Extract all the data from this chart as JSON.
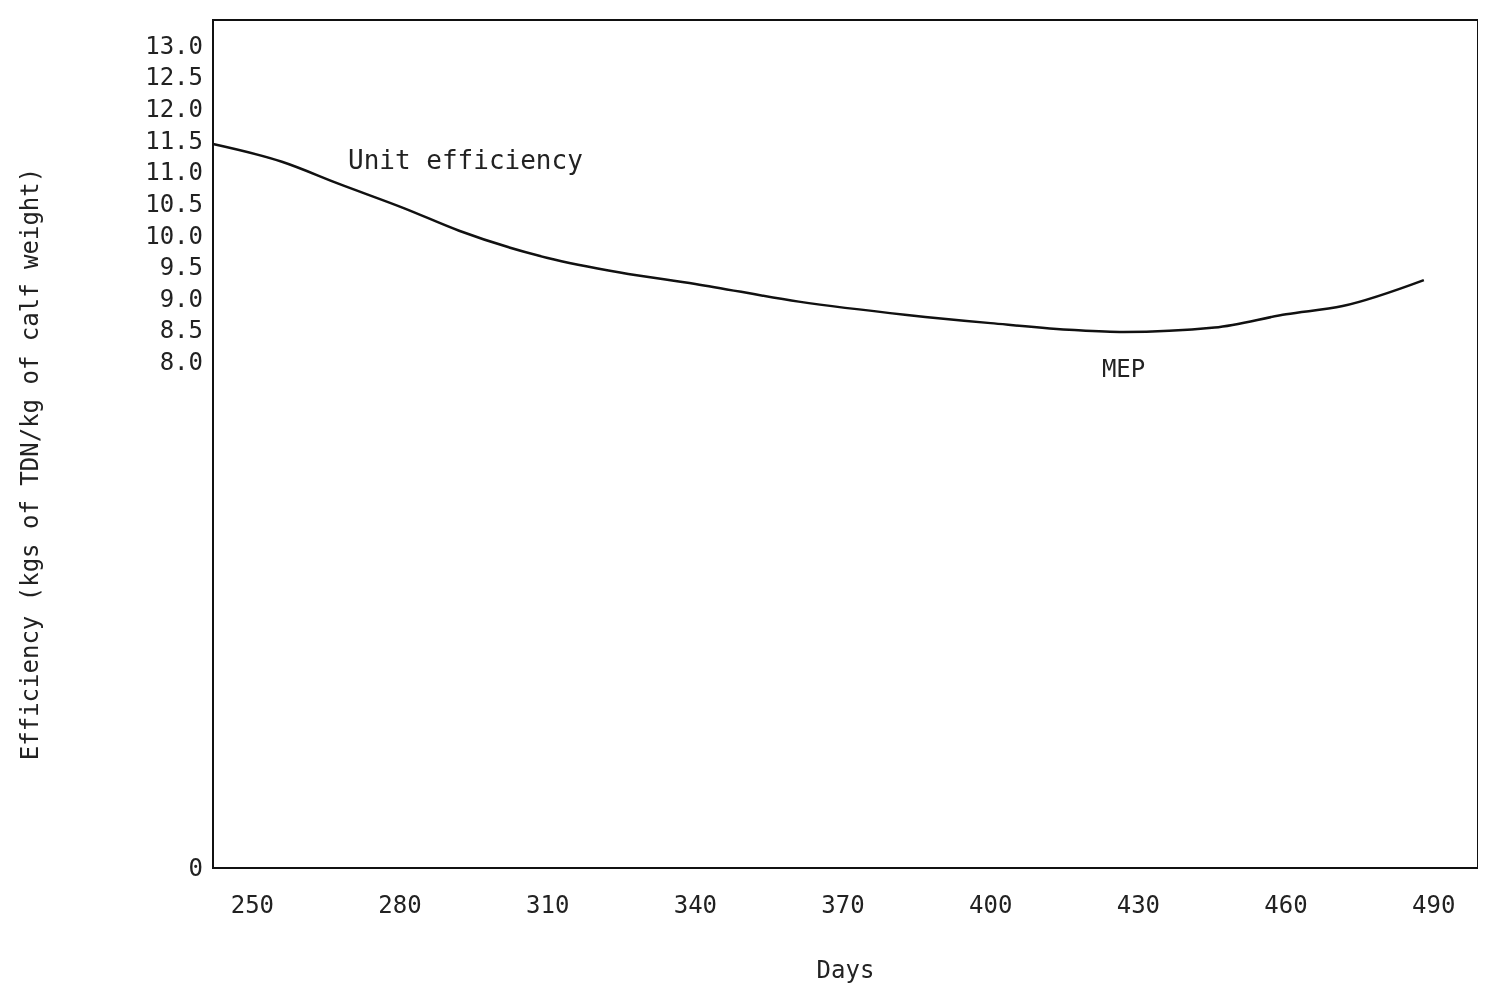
{
  "chart_data": {
    "type": "line",
    "xlabel": "Days",
    "ylabel": "Efficiency (kgs of TDN/kg of calf weight)",
    "xlim": [
      242,
      499
    ],
    "xticks": [
      250,
      280,
      310,
      340,
      370,
      400,
      430,
      460,
      490
    ],
    "ylim": [
      0,
      13.4
    ],
    "yticks": [
      0,
      {
        "value": 8,
        "label": "8.0"
      },
      8.5,
      {
        "value": 9,
        "label": "9.0"
      },
      9.5,
      {
        "value": 10,
        "label": "10.0"
      },
      10.5,
      {
        "value": 11,
        "label": "11.0"
      },
      11.5,
      {
        "value": 12,
        "label": "12.0"
      },
      12.5,
      {
        "value": 13,
        "label": "13.0"
      }
    ],
    "grid": false,
    "marker": "none",
    "line_style": "solid",
    "series": [
      {
        "name": "Unit efficiency",
        "color": "#111111",
        "x": [
          242,
          256,
          267.6,
          281,
          292,
          310,
          324.7,
          340,
          361,
          383,
          400,
          417,
          427,
          445.5,
          460,
          471.5,
          488
        ],
        "values": [
          11.44,
          11.16,
          10.81,
          10.42,
          10.07,
          9.64,
          9.41,
          9.23,
          8.95,
          8.74,
          8.61,
          8.5,
          8.47,
          8.54,
          8.75,
          8.88,
          9.29
        ]
      }
    ],
    "annotations": [
      {
        "text": "MEP",
        "x": 427,
        "y": 8.47
      }
    ]
  }
}
